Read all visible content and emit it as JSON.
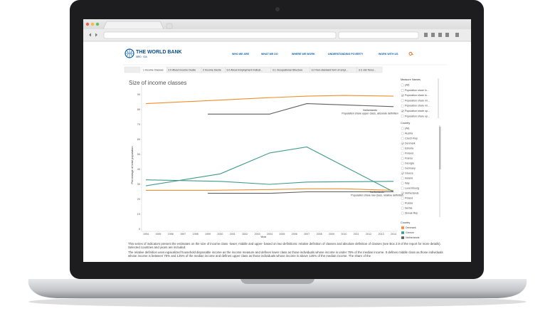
{
  "header": {
    "logo": "THE WORLD BANK",
    "logo_sub": "IBRD · IDA",
    "nav": [
      "WHO WE ARE",
      "WHAT WE DO",
      "WHERE WE WORK",
      "UNDERSTANDING POVERTY",
      "WORK WITH US"
    ]
  },
  "tabs": [
    "1 Income Classes",
    "2.0 About Income Decile",
    "2 Income Decile",
    "3.0 About Employment Indicat...",
    "3.1 Occupational Structure",
    "3.2 Non-standard form of empl...",
    "3.3 Job Tenur..."
  ],
  "chart_data": {
    "type": "line",
    "title": "Size of income classes",
    "x_label": "Year",
    "y_label": "Percentage of total population",
    "xlim": [
      1994,
      2014
    ],
    "xticks": [
      1994,
      1995,
      1996,
      1997,
      1998,
      1999,
      2000,
      2001,
      2002,
      2003,
      2004,
      2005,
      2006,
      2007,
      2008,
      2009,
      2010,
      2011,
      2012,
      2013,
      2014
    ],
    "ylim": [
      0,
      90
    ],
    "yticks": [
      0,
      10,
      20,
      30,
      40,
      50,
      60,
      70,
      80,
      90
    ],
    "legend_title": "Country",
    "series": [
      {
        "name": "Denmark",
        "color": "#f28e2b",
        "lines": [
          {
            "x": [
              1994,
              1999,
              2004,
              2007,
              2010,
              2014
            ],
            "values": [
              84,
              86,
              88,
              89,
              89.5,
              89
            ]
          },
          {
            "x": [
              1994,
              1999,
              2004,
              2007,
              2010,
              2014
            ],
            "values": [
              26,
              26,
              26.5,
              27,
              27,
              26
            ]
          }
        ]
      },
      {
        "name": "Greece",
        "color": "#3f9b8a",
        "lines": [
          {
            "x": [
              1994,
              2000,
              2004,
              2007,
              2014
            ],
            "values": [
              29,
              37,
              51,
              55,
              25
            ]
          },
          {
            "x": [
              1994,
              2000,
              2004,
              2007,
              2014
            ],
            "values": [
              33,
              32,
              30,
              31.5,
              32
            ]
          }
        ]
      },
      {
        "name": "Netherlands",
        "color": "#5f5f5f",
        "lines": [
          {
            "x": [
              1999,
              2004,
              2007,
              2014
            ],
            "values": [
              77,
              77,
              84,
              82
            ]
          },
          {
            "x": [
              1999,
              2004,
              2007,
              2014
            ],
            "values": [
              24,
              24,
              25,
              25
            ]
          }
        ]
      }
    ],
    "annotations": [
      [
        "Netherlands",
        "Population share upper class, absolute definition"
      ],
      [
        "Netherlands",
        "Population share low class, relative definition"
      ]
    ]
  },
  "filters": [
    {
      "title": "Measure Names",
      "items": [
        {
          "label": "(All)",
          "checked": false
        },
        {
          "label": "Population share lo...",
          "checked": false
        },
        {
          "label": "Population share lo...",
          "checked": true
        },
        {
          "label": "Population share mi...",
          "checked": false
        },
        {
          "label": "Population share mi...",
          "checked": false
        },
        {
          "label": "Population share up...",
          "checked": true
        },
        {
          "label": "Population share up...",
          "checked": false
        }
      ]
    },
    {
      "title": "Country",
      "items": [
        {
          "label": "(All)",
          "checked": false
        },
        {
          "label": "Austria",
          "checked": false
        },
        {
          "label": "Czech Rep",
          "checked": false
        },
        {
          "label": "Denmark",
          "checked": true
        },
        {
          "label": "Estonia",
          "checked": false
        },
        {
          "label": "Finland",
          "checked": false
        },
        {
          "label": "France",
          "checked": false
        },
        {
          "label": "Georgia",
          "checked": false
        },
        {
          "label": "Germany",
          "checked": false
        },
        {
          "label": "Greece",
          "checked": true
        },
        {
          "label": "Ireland",
          "checked": false
        },
        {
          "label": "Italy",
          "checked": false
        },
        {
          "label": "Luxembourg",
          "checked": false
        },
        {
          "label": "Netherlands",
          "checked": true
        },
        {
          "label": "Poland",
          "checked": false
        },
        {
          "label": "Russia",
          "checked": false
        },
        {
          "label": "Serbia",
          "checked": false
        },
        {
          "label": "Slovak Rep",
          "checked": false
        }
      ]
    }
  ],
  "description": [
    "This series of indicators present the estimates on the size of income class -lower, middle and upper- based on two definitions: relative definition of classes and absolute definition of classes (see Box 2.8 of the report for more details). Selected countries and years are included.",
    "The relative definition uses equivalized household disposable income as the income measure and defines lower class as those individuals whose income is under 75% of the median income. It defines middle class as those individuals whose income is between 75% and 125% of the median income and defines upper class as those individuals whose income is above 125% of the median income. The share of the"
  ]
}
